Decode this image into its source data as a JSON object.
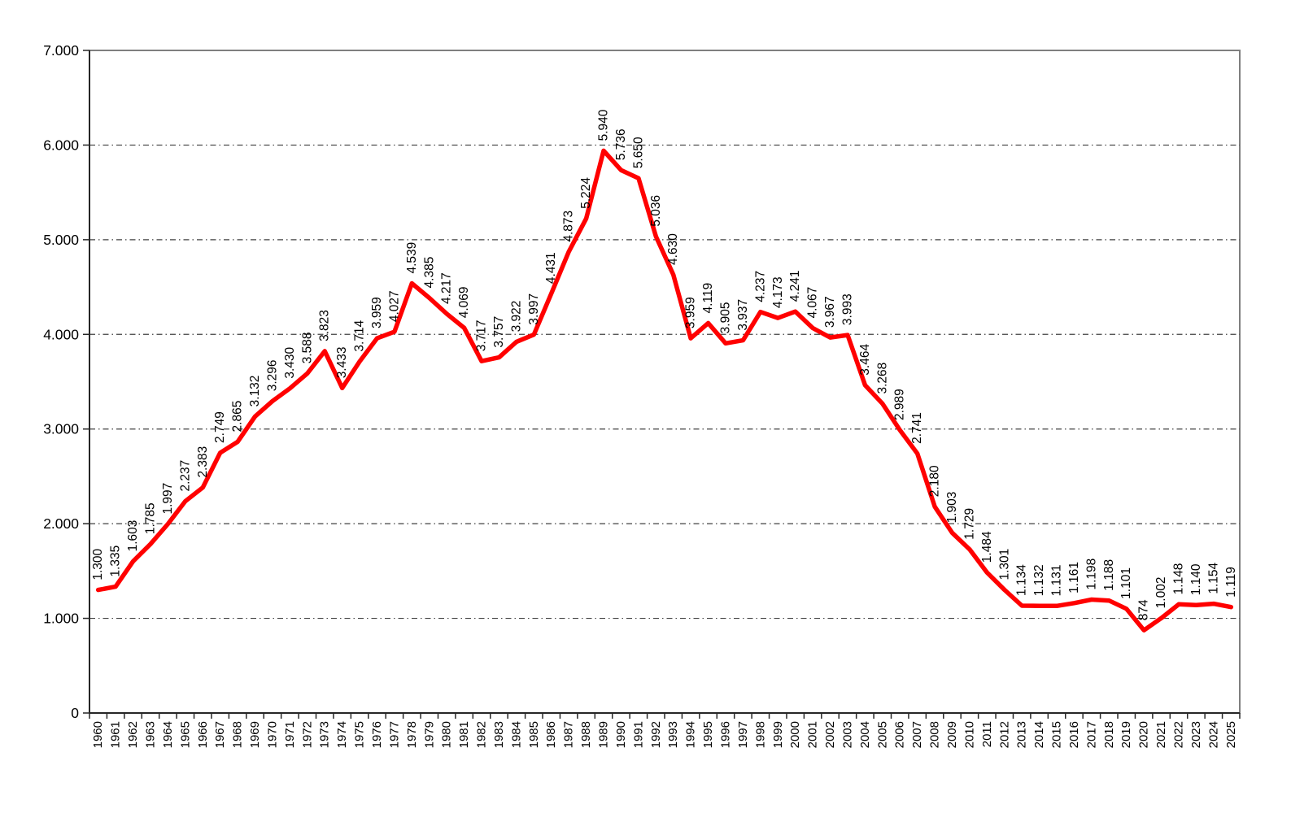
{
  "chart_data": {
    "type": "line",
    "title": "",
    "xlabel": "",
    "ylabel": "",
    "legend": "none",
    "grid": "horizontal-dash-dot",
    "line_color": "#ff0000",
    "plot_border_color": "#7f7f7f",
    "axis_color": "#262626",
    "gridline_color": "#404040",
    "label_color": "#000000",
    "ylim": [
      0,
      7000
    ],
    "y_gridlines": [
      1000,
      2000,
      3000,
      4000,
      5000,
      6000
    ],
    "y_tick_values": [
      0,
      1000,
      2000,
      3000,
      4000,
      5000,
      6000,
      7000
    ],
    "y_tick_labels": [
      "0",
      "1.000",
      "2.000",
      "3.000",
      "4.000",
      "5.000",
      "6.000",
      "7.000"
    ],
    "x": [
      1960,
      1961,
      1962,
      1963,
      1964,
      1965,
      1966,
      1967,
      1968,
      1969,
      1970,
      1971,
      1972,
      1973,
      1974,
      1975,
      1976,
      1977,
      1978,
      1979,
      1980,
      1981,
      1982,
      1983,
      1984,
      1985,
      1986,
      1987,
      1988,
      1989,
      1990,
      1991,
      1992,
      1993,
      1994,
      1995,
      1996,
      1997,
      1998,
      1999,
      2000,
      2001,
      2002,
      2003,
      2004,
      2005,
      2006,
      2007,
      2008,
      2009,
      2010,
      2011,
      2012,
      2013,
      2014,
      2015,
      2016,
      2017,
      2018,
      2019,
      2020,
      2021,
      2022,
      2023,
      2024,
      2025
    ],
    "values": [
      1300,
      1335,
      1603,
      1785,
      1997,
      2237,
      2383,
      2749,
      2865,
      3132,
      3296,
      3430,
      3588,
      3823,
      3433,
      3714,
      3959,
      4027,
      4539,
      4385,
      4217,
      4069,
      3717,
      3757,
      3922,
      3997,
      4431,
      4873,
      5224,
      5940,
      5736,
      5650,
      5036,
      4630,
      3959,
      4119,
      3905,
      3937,
      4237,
      4173,
      4241,
      4067,
      3967,
      3993,
      3464,
      3268,
      2989,
      2741,
      2180,
      1903,
      1729,
      1484,
      1301,
      1134,
      1132,
      1131,
      1161,
      1198,
      1188,
      1101,
      874,
      1002,
      1148,
      1140,
      1154,
      1119
    ],
    "point_labels": [
      "1.300",
      "1.335",
      "1.603",
      "1.785",
      "1.997",
      "2.237",
      "2.383",
      "2.749",
      "2.865",
      "3.132",
      "3.296",
      "3.430",
      "3.588",
      "3.823",
      "3.433",
      "3.714",
      "3.959",
      "4.027",
      "4.539",
      "4.385",
      "4.217",
      "4.069",
      "3.717",
      "3.757",
      "3.922",
      "3.997",
      "4.431",
      "4.873",
      "5.224",
      "5.940",
      "5.736",
      "5.650",
      "5.036",
      "4.630",
      "3.959",
      "4.119",
      "3.905",
      "3.937",
      "4.237",
      "4.173",
      "4.241",
      "4.067",
      "3.967",
      "3.993",
      "3.464",
      "3.268",
      "2.989",
      "2.741",
      "2.180",
      "1.903",
      "1.729",
      "1.484",
      "1.301",
      "1.134",
      "1.132",
      "1.131",
      "1.161",
      "1.198",
      "1.188",
      "1.101",
      "874",
      "1.002",
      "1.148",
      "1.140",
      "1.154",
      "1.119"
    ]
  }
}
